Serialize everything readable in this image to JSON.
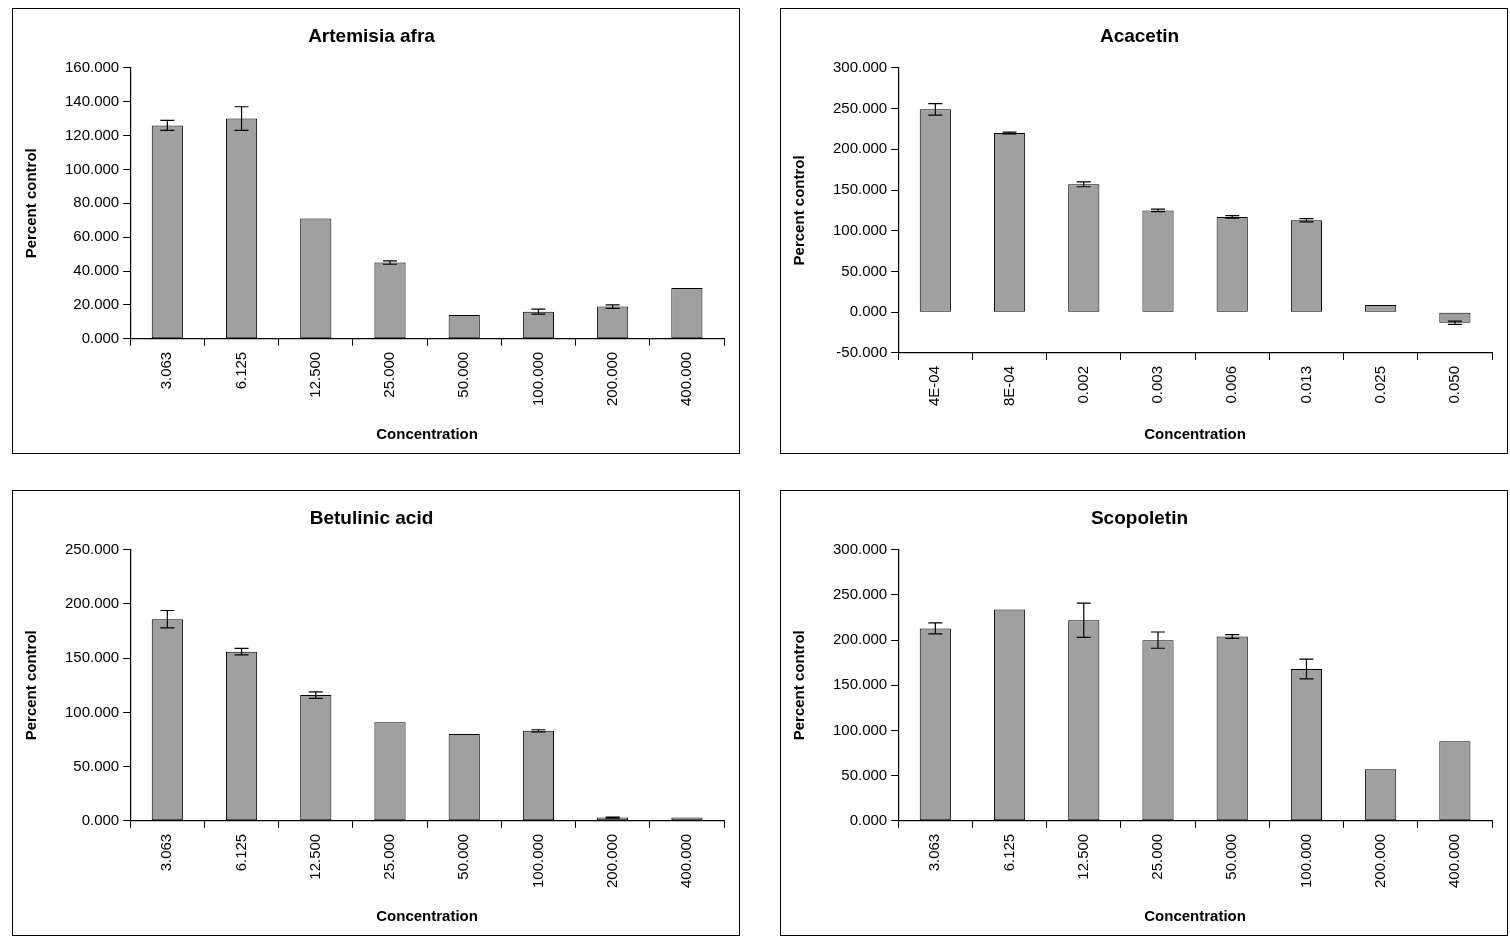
{
  "chart_data": [
    {
      "type": "bar",
      "title": "Artemisia afra",
      "xlabel": "Concentration",
      "ylabel": "Percent control",
      "categories": [
        "3.063",
        "6.125",
        "12.500",
        "25.000",
        "50.000",
        "100.000",
        "200.000",
        "400.000"
      ],
      "values": [
        126,
        130,
        71,
        45,
        14,
        16,
        19,
        30
      ],
      "errors": [
        3,
        7,
        null,
        1,
        null,
        1.5,
        1,
        null
      ],
      "color": "#a0a0a0",
      "ylim": [
        0,
        160
      ],
      "yticks": [
        {
          "value": 0,
          "label": "0.000"
        },
        {
          "value": 20,
          "label": "20.000"
        },
        {
          "value": 40,
          "label": "40.000"
        },
        {
          "value": 60,
          "label": "60.000"
        },
        {
          "value": 80,
          "label": "80.000"
        },
        {
          "value": 100,
          "label": "100.000"
        },
        {
          "value": 120,
          "label": "120.000"
        },
        {
          "value": 140,
          "label": "140.000"
        },
        {
          "value": 160,
          "label": "160.000"
        }
      ],
      "grid": false,
      "legend": false
    },
    {
      "type": "bar",
      "title": "Acacetin",
      "xlabel": "Concentration",
      "ylabel": "Percent control",
      "categories": [
        "4E-04",
        "8E-04",
        "0.002",
        "0.003",
        "0.006",
        "0.013",
        "0.025",
        "0.050"
      ],
      "values": [
        249,
        220,
        157,
        125,
        117,
        113,
        9,
        -13
      ],
      "errors": [
        7,
        1,
        3,
        1.5,
        1.5,
        2,
        null,
        2
      ],
      "color": "#a0a0a0",
      "ylim": [
        -50,
        300
      ],
      "yticks": [
        {
          "value": -50,
          "label": "-50.000"
        },
        {
          "value": 0,
          "label": "0.000"
        },
        {
          "value": 50,
          "label": "50.000"
        },
        {
          "value": 100,
          "label": "100.000"
        },
        {
          "value": 150,
          "label": "150.000"
        },
        {
          "value": 200,
          "label": "200.000"
        },
        {
          "value": 250,
          "label": "250.000"
        },
        {
          "value": 300,
          "label": "300.000"
        }
      ],
      "grid": false,
      "legend": false
    },
    {
      "type": "bar",
      "title": "Betulinic acid",
      "xlabel": "Concentration",
      "ylabel": "Percent control",
      "categories": [
        "3.063",
        "6.125",
        "12.500",
        "25.000",
        "50.000",
        "100.000",
        "200.000",
        "400.000"
      ],
      "values": [
        186,
        156,
        116,
        91,
        80,
        83,
        3,
        3
      ],
      "errors": [
        8,
        3,
        3,
        null,
        null,
        1,
        0.5,
        null
      ],
      "color": "#a0a0a0",
      "ylim": [
        0,
        250
      ],
      "yticks": [
        {
          "value": 0,
          "label": "0.000"
        },
        {
          "value": 50,
          "label": "50.000"
        },
        {
          "value": 100,
          "label": "100.000"
        },
        {
          "value": 150,
          "label": "150.000"
        },
        {
          "value": 200,
          "label": "200.000"
        },
        {
          "value": 250,
          "label": "250.000"
        }
      ],
      "grid": false,
      "legend": false
    },
    {
      "type": "bar",
      "title": "Scopoletin",
      "xlabel": "Concentration",
      "ylabel": "Percent control",
      "categories": [
        "3.063",
        "6.125",
        "12.500",
        "25.000",
        "50.000",
        "100.000",
        "200.000",
        "400.000"
      ],
      "values": [
        213,
        234,
        222,
        200,
        204,
        168,
        57,
        88
      ],
      "errors": [
        6,
        null,
        19,
        9,
        2,
        11,
        null,
        null
      ],
      "color": "#a0a0a0",
      "ylim": [
        0,
        300
      ],
      "yticks": [
        {
          "value": 0,
          "label": "0.000"
        },
        {
          "value": 50,
          "label": "50.000"
        },
        {
          "value": 100,
          "label": "100.000"
        },
        {
          "value": 150,
          "label": "150.000"
        },
        {
          "value": 200,
          "label": "200.000"
        },
        {
          "value": 250,
          "label": "250.000"
        },
        {
          "value": 300,
          "label": "300.000"
        }
      ],
      "grid": false,
      "legend": false
    }
  ]
}
